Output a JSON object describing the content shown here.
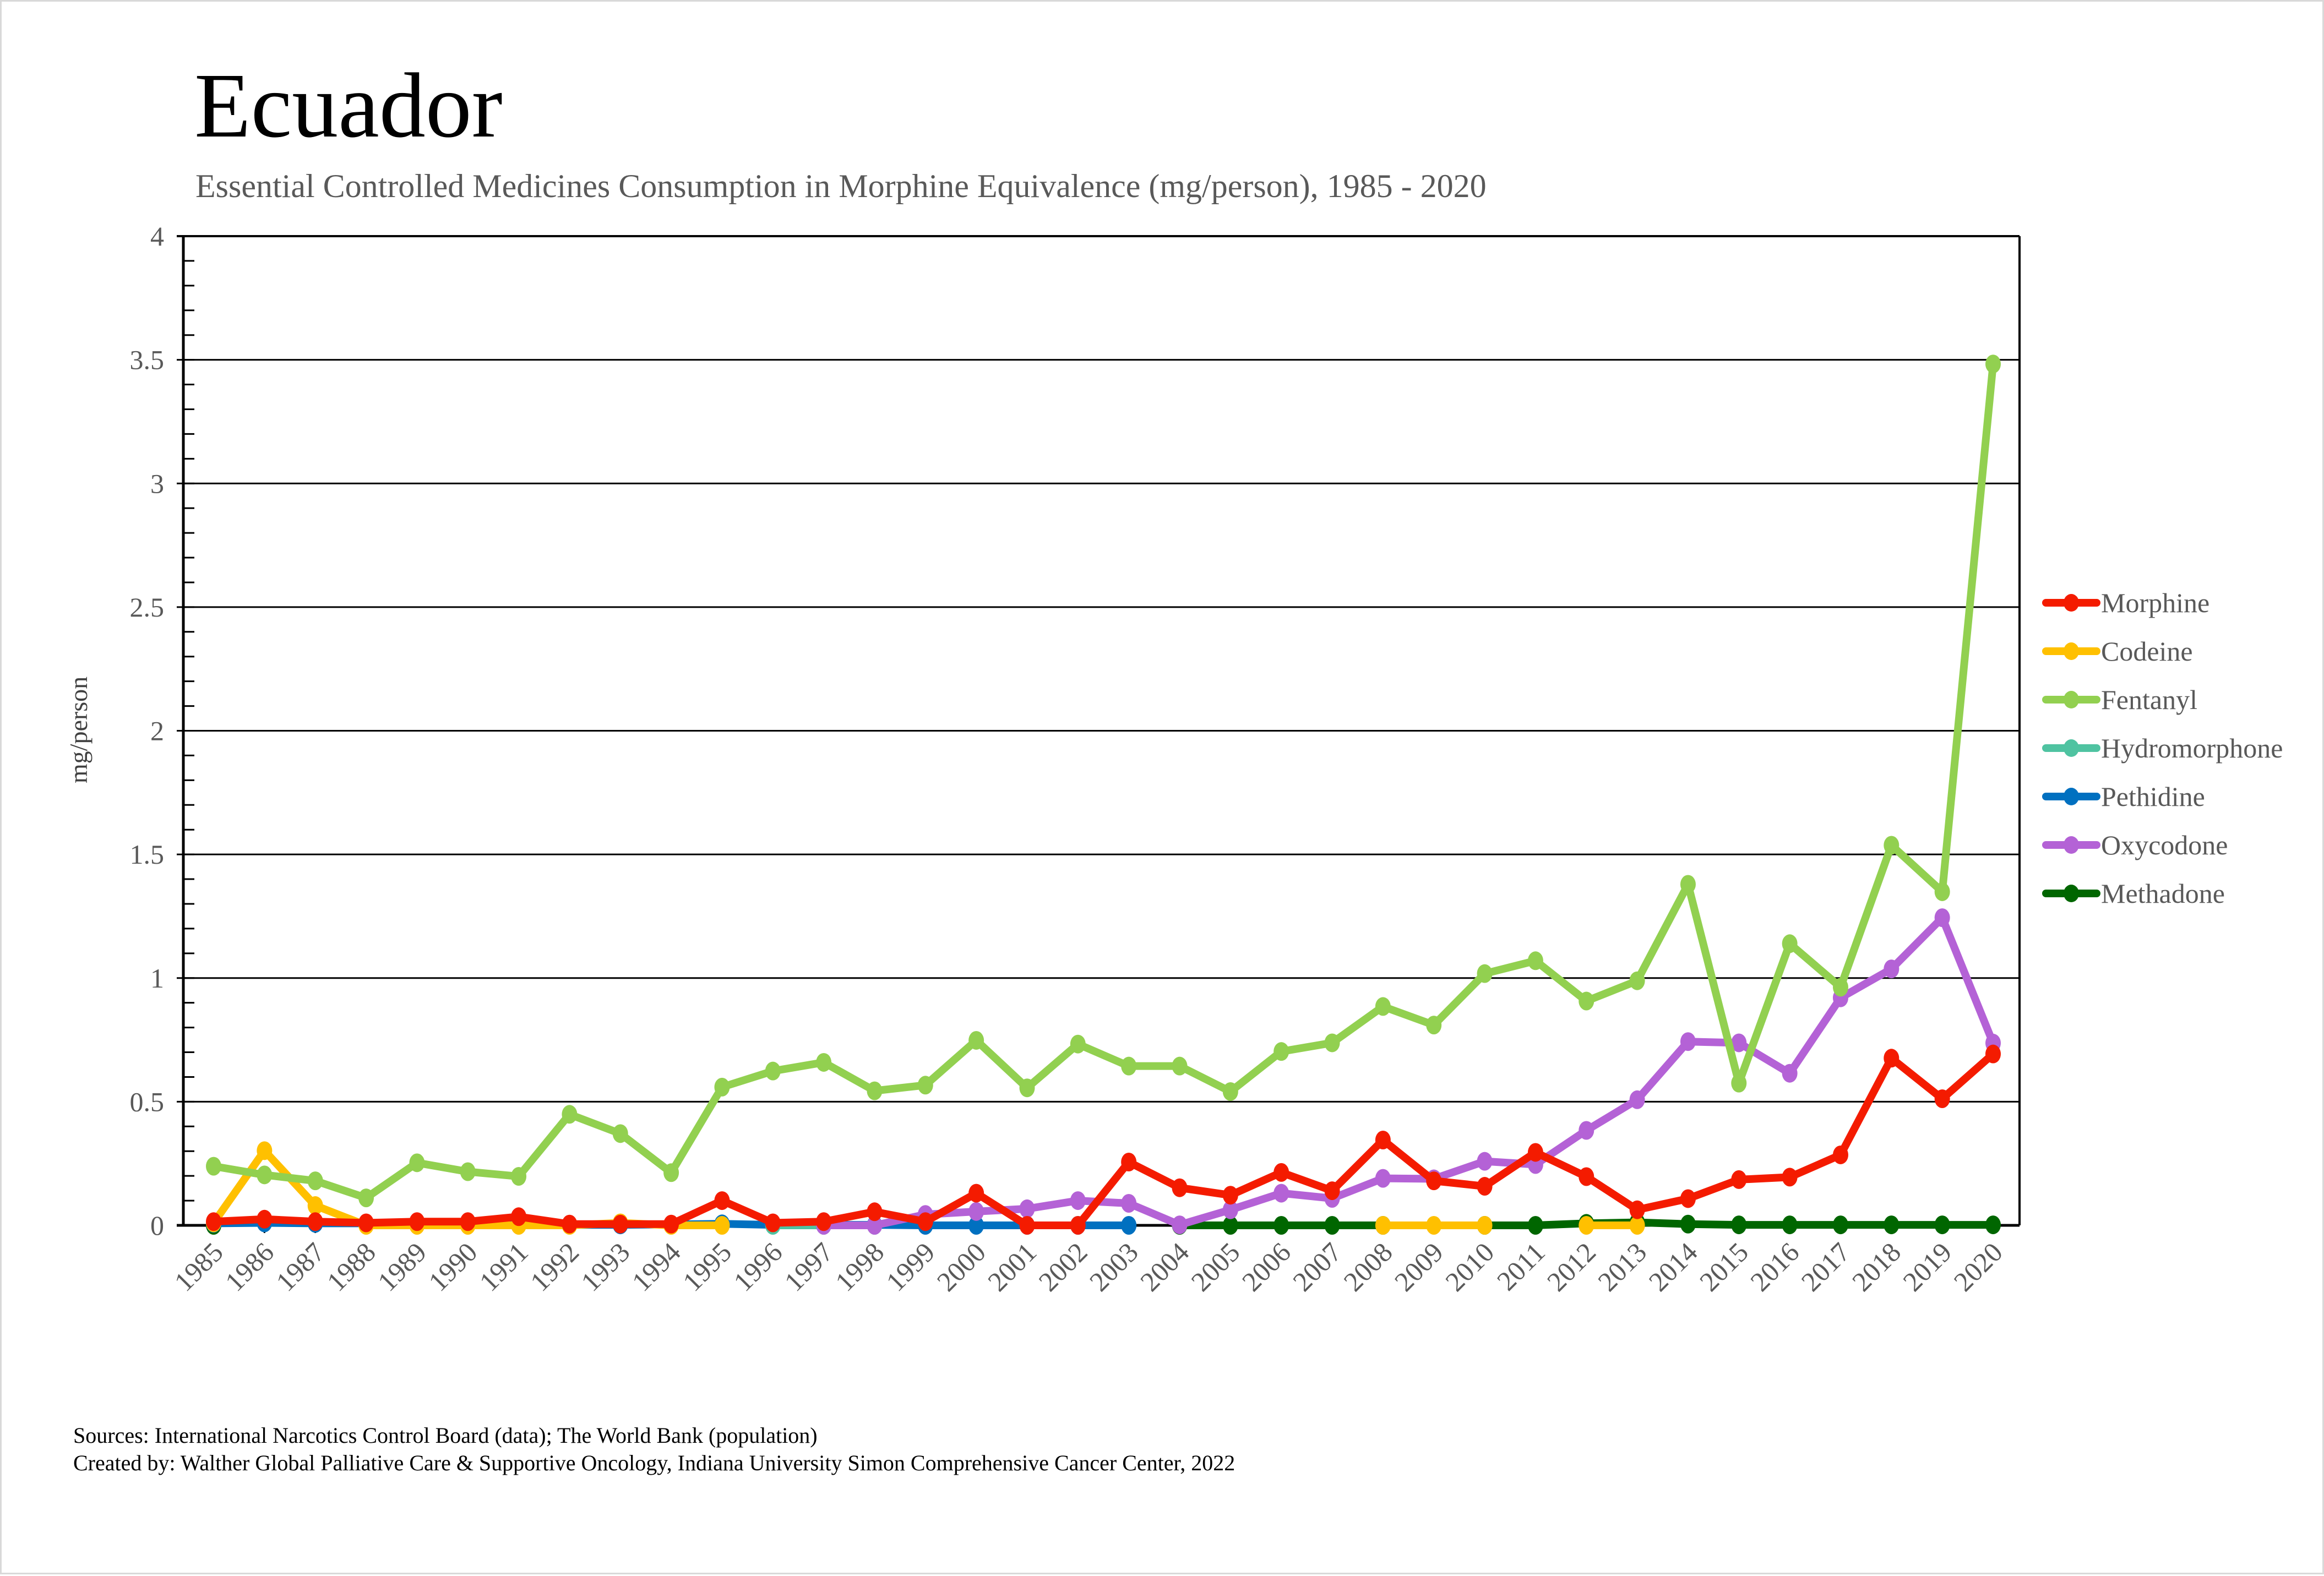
{
  "header": {
    "title": "Ecuador",
    "subtitle": "Essential Controlled Medicines Consumption in Morphine Equivalence (mg/person), 1985 - 2020"
  },
  "footer": {
    "sources": "Sources: International Narcotics Control Board (data); The World Bank (population)",
    "created_by": "Created by: Walther Global Palliative Care & Supportive Oncology, Indiana University Simon Comprehensive Cancer Center, 2022"
  },
  "chart_data": {
    "type": "line",
    "title": "Ecuador",
    "subtitle": "Essential Controlled Medicines Consumption in Morphine Equivalence (mg/person), 1985 - 2020",
    "xlabel": "",
    "ylabel": "mg/person",
    "ylim": [
      0,
      4
    ],
    "yticks": [
      0,
      0.5,
      1,
      1.5,
      2,
      2.5,
      3,
      3.5,
      4
    ],
    "ytick_labels": [
      "0",
      "0.5",
      "1",
      "1.5",
      "2",
      "2.5",
      "3",
      "3.5",
      "4"
    ],
    "y_minor_step": 0.1,
    "grid": true,
    "legend_position": "right",
    "x": [
      "1985",
      "1986",
      "1987",
      "1988",
      "1989",
      "1990",
      "1991",
      "1992",
      "1993",
      "1994",
      "1995",
      "1996",
      "1997",
      "1998",
      "1999",
      "2000",
      "2001",
      "2002",
      "2003",
      "2004",
      "2005",
      "2006",
      "2007",
      "2008",
      "2009",
      "2010",
      "2011",
      "2012",
      "2013",
      "2014",
      "2015",
      "2016",
      "2017",
      "2018",
      "2019",
      "2020"
    ],
    "series": [
      {
        "name": "Morphine",
        "color": "#f41b00",
        "values": [
          0.015,
          0.025,
          0.015,
          0.01,
          0.015,
          0.015,
          0.035,
          0.005,
          0.005,
          0.005,
          0.1,
          0.01,
          0.015,
          0.055,
          0.015,
          0.13,
          0,
          0,
          0.256,
          0.152,
          0.122,
          0.214,
          0.14,
          0.345,
          0.18,
          0.158,
          0.295,
          0.197,
          0.063,
          0.108,
          0.185,
          0.195,
          0.285,
          0.676,
          0.512,
          0.693
        ]
      },
      {
        "name": "Codeine",
        "color": "#ffc000",
        "values": [
          0.01,
          0.302,
          0.08,
          0,
          0,
          0,
          0,
          0,
          0.01,
          0,
          0,
          null,
          null,
          null,
          null,
          null,
          null,
          null,
          null,
          null,
          null,
          null,
          null,
          0,
          0,
          0,
          null,
          0,
          0,
          null,
          null,
          null,
          null,
          null,
          null,
          null
        ]
      },
      {
        "name": "Fentanyl",
        "color": "#92d050",
        "values": [
          0.239,
          0.204,
          0.18,
          0.111,
          0.253,
          0.217,
          0.198,
          0.449,
          0.371,
          0.213,
          0.559,
          0.624,
          0.659,
          0.544,
          0.567,
          0.748,
          0.556,
          0.733,
          0.644,
          0.644,
          0.541,
          0.703,
          0.738,
          0.885,
          0.81,
          1.018,
          1.07,
          0.907,
          0.989,
          1.379,
          0.575,
          1.139,
          0.963,
          1.537,
          1.349,
          3.483
        ]
      },
      {
        "name": "Hydromorphone",
        "color": "#4fc3a1",
        "values": [
          null,
          null,
          null,
          null,
          null,
          null,
          null,
          null,
          null,
          null,
          null,
          0,
          0,
          0,
          null,
          null,
          null,
          null,
          null,
          null,
          null,
          null,
          null,
          null,
          null,
          null,
          null,
          null,
          null,
          null,
          null,
          null,
          null,
          null,
          null,
          null
        ]
      },
      {
        "name": "Pethidine",
        "color": "#0070c0",
        "values": [
          0.008,
          0.01,
          0.008,
          0.008,
          0.008,
          0.008,
          0.002,
          0.002,
          0.002,
          0.004,
          0.006,
          0.002,
          0.002,
          0.002,
          0,
          0,
          0,
          0,
          0,
          null,
          null,
          null,
          null,
          null,
          null,
          null,
          null,
          null,
          null,
          null,
          null,
          null,
          null,
          null,
          null,
          null
        ]
      },
      {
        "name": "Oxycodone",
        "color": "#b462d6",
        "values": [
          null,
          null,
          null,
          null,
          null,
          null,
          null,
          null,
          null,
          null,
          null,
          null,
          0,
          0,
          0.044,
          0.056,
          0.067,
          0.1,
          0.089,
          0.002,
          0.063,
          0.13,
          0.109,
          0.19,
          0.188,
          0.259,
          0.246,
          0.384,
          0.508,
          0.743,
          0.738,
          0.615,
          0.92,
          1.037,
          1.244,
          0.737
        ]
      },
      {
        "name": "Methadone",
        "color": "#006600",
        "values": [
          0,
          null,
          null,
          null,
          null,
          null,
          null,
          null,
          null,
          null,
          null,
          null,
          null,
          null,
          null,
          null,
          null,
          null,
          null,
          0,
          0,
          0,
          0,
          0,
          null,
          0,
          0,
          0.008,
          0.012,
          0.005,
          0.002,
          0.002,
          0.002,
          0.002,
          0.002,
          0.002
        ]
      }
    ]
  }
}
